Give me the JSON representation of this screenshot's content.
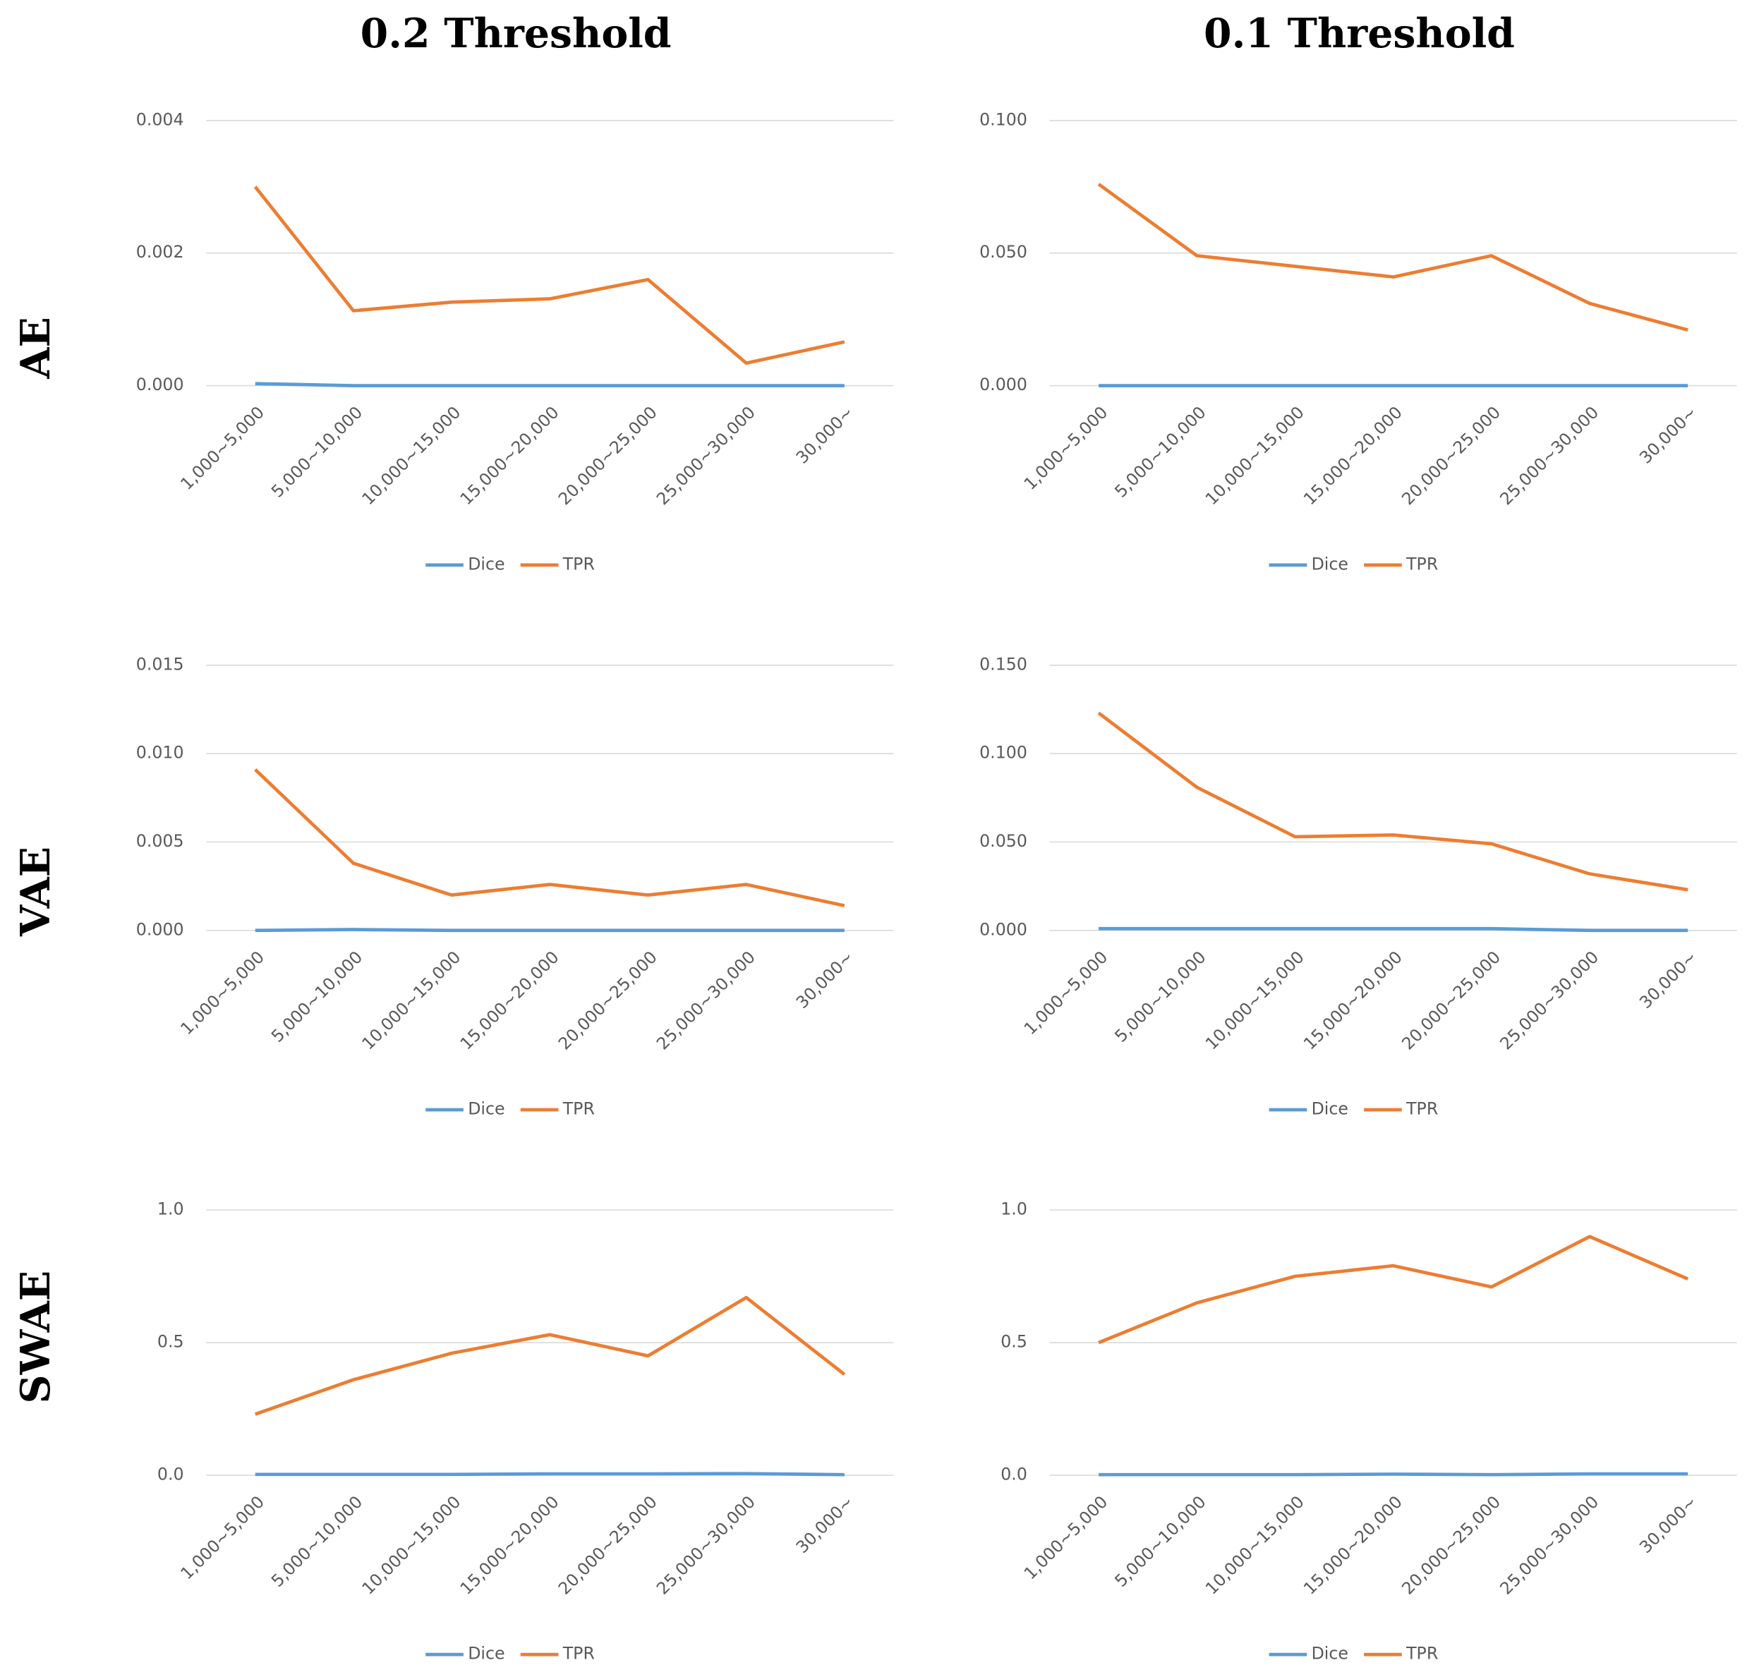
{
  "column_titles": [
    "0.2 Threshold",
    "0.1 Threshold"
  ],
  "row_labels": [
    "AE",
    "VAE",
    "SWAE"
  ],
  "chart_data": [
    {
      "type": "line",
      "categories": [
        "1,000~5,000",
        "5,000~10,000",
        "10,000~15,000",
        "15,000~20,000",
        "20,000~25,000",
        "25,000~30,000",
        "30,000~"
      ],
      "series": [
        {
          "name": "Dice",
          "color": "#5b9bd5",
          "values": [
            3e-05,
            0,
            0,
            0,
            0,
            0,
            0
          ]
        },
        {
          "name": "TPR",
          "color": "#ed7d31",
          "values": [
            0.003,
            0.00113,
            0.00126,
            0.00131,
            0.0016,
            0.00034,
            0.00066
          ]
        }
      ],
      "ylim": [
        0,
        0.004
      ],
      "yticks": [
        {
          "value": 0,
          "label": "0.000"
        },
        0.002,
        0.004
      ],
      "grid": true,
      "legend": "bottom"
    },
    {
      "type": "line",
      "categories": [
        "1,000~5,000",
        "5,000~10,000",
        "10,000~15,000",
        "15,000~20,000",
        "20,000~25,000",
        "25,000~30,000",
        "30,000~"
      ],
      "series": [
        {
          "name": "Dice",
          "color": "#5b9bd5",
          "values": [
            0,
            0,
            0,
            0,
            0,
            0,
            0
          ]
        },
        {
          "name": "TPR",
          "color": "#ed7d31",
          "values": [
            0.076,
            0.049,
            0.045,
            0.041,
            0.049,
            0.031,
            0.021
          ]
        }
      ],
      "ylim": [
        0,
        0.1
      ],
      "yticks": [
        {
          "value": 0,
          "label": "0.000"
        },
        {
          "value": 0.05,
          "label": "0.050"
        },
        {
          "value": 0.1,
          "label": "0.100"
        }
      ],
      "grid": true,
      "legend": "bottom"
    },
    {
      "type": "line",
      "categories": [
        "1,000~5,000",
        "5,000~10,000",
        "10,000~15,000",
        "15,000~20,000",
        "20,000~25,000",
        "25,000~30,000",
        "30,000~"
      ],
      "series": [
        {
          "name": "Dice",
          "color": "#5b9bd5",
          "values": [
            0,
            5e-05,
            0,
            0,
            0,
            0,
            0
          ]
        },
        {
          "name": "TPR",
          "color": "#ed7d31",
          "values": [
            0.0091,
            0.0038,
            0.002,
            0.0026,
            0.002,
            0.0026,
            0.0014
          ]
        }
      ],
      "ylim": [
        0,
        0.015
      ],
      "yticks": [
        {
          "value": 0,
          "label": "0.000"
        },
        0.005,
        {
          "value": 0.01,
          "label": "0.010"
        },
        0.015
      ],
      "grid": true,
      "legend": "bottom"
    },
    {
      "type": "line",
      "categories": [
        "1,000~5,000",
        "5,000~10,000",
        "10,000~15,000",
        "15,000~20,000",
        "20,000~25,000",
        "25,000~30,000",
        "30,000~"
      ],
      "series": [
        {
          "name": "Dice",
          "color": "#5b9bd5",
          "values": [
            0.001,
            0.001,
            0.001,
            0.001,
            0.001,
            0,
            0
          ]
        },
        {
          "name": "TPR",
          "color": "#ed7d31",
          "values": [
            0.123,
            0.081,
            0.053,
            0.054,
            0.049,
            0.032,
            0.023
          ]
        }
      ],
      "ylim": [
        0,
        0.15
      ],
      "yticks": [
        {
          "value": 0,
          "label": "0.000"
        },
        {
          "value": 0.05,
          "label": "0.050"
        },
        {
          "value": 0.1,
          "label": "0.100"
        },
        {
          "value": 0.15,
          "label": "0.150"
        }
      ],
      "grid": true,
      "legend": "bottom"
    },
    {
      "type": "line",
      "categories": [
        "1,000~5,000",
        "5,000~10,000",
        "10,000~15,000",
        "15,000~20,000",
        "20,000~25,000",
        "25,000~30,000",
        "30,000~"
      ],
      "series": [
        {
          "name": "Dice",
          "color": "#5b9bd5",
          "values": [
            0.003,
            0.003,
            0.003,
            0.005,
            0.005,
            0.006,
            0.002
          ]
        },
        {
          "name": "TPR",
          "color": "#ed7d31",
          "values": [
            0.23,
            0.36,
            0.46,
            0.53,
            0.45,
            0.67,
            0.38
          ]
        }
      ],
      "ylim": [
        0,
        1
      ],
      "yticks": [
        {
          "value": 0,
          "label": "0.0"
        },
        0.5,
        {
          "value": 1,
          "label": "1.0"
        }
      ],
      "grid": true,
      "legend": "bottom"
    },
    {
      "type": "line",
      "categories": [
        "1,000~5,000",
        "5,000~10,000",
        "10,000~15,000",
        "15,000~20,000",
        "20,000~25,000",
        "25,000~30,000",
        "30,000~"
      ],
      "series": [
        {
          "name": "Dice",
          "color": "#5b9bd5",
          "values": [
            0.002,
            0.002,
            0.002,
            0.004,
            0.002,
            0.005,
            0.005
          ]
        },
        {
          "name": "TPR",
          "color": "#ed7d31",
          "values": [
            0.5,
            0.65,
            0.75,
            0.79,
            0.71,
            0.9,
            0.74
          ]
        }
      ],
      "ylim": [
        0,
        1
      ],
      "yticks": [
        {
          "value": 0,
          "label": "0.0"
        },
        0.5,
        {
          "value": 1,
          "label": "1.0"
        }
      ],
      "grid": true,
      "legend": "bottom"
    }
  ]
}
